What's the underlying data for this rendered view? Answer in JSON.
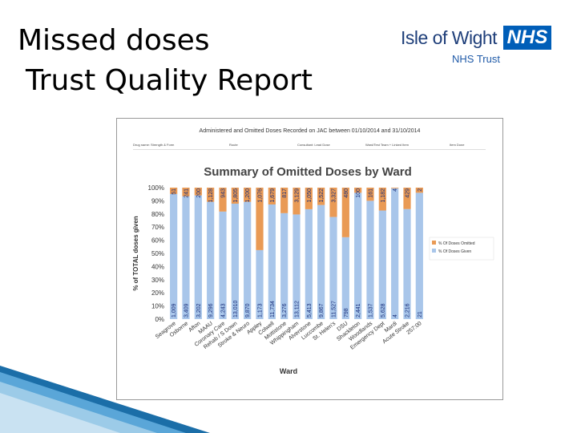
{
  "slide": {
    "title_line1": "Missed doses",
    "title_line2": "Trust Quality Report"
  },
  "logo": {
    "org": "Isle of Wight",
    "mark": "NHS",
    "subtitle": "NHS Trust"
  },
  "report": {
    "header": "Administered and Omitted Doses Recorded on JAC between 01/10/2014 and 31/10/2014",
    "params": [
      "Drug name: Strength & Form",
      "Route",
      "Consultant: Lead Dose",
      "Ward/Test Team + Linked Item",
      "Item Done"
    ]
  },
  "colors": {
    "given": "#a9c6ea",
    "omitted": "#e99a55",
    "navy": "#005eb8"
  },
  "chart_data": {
    "type": "bar",
    "stacked": true,
    "orientation": "vertical",
    "title": "Summary of Omitted Doses by Ward",
    "xlabel": "Ward",
    "ylabel": "% of TOTAL doses given",
    "ylim": [
      0,
      100
    ],
    "yticks": [
      "0%",
      "10%",
      "20%",
      "30%",
      "40%",
      "50%",
      "60%",
      "70%",
      "80%",
      "90%",
      "100%"
    ],
    "grid": false,
    "legend_position": "right",
    "categories": [
      "Seagrove",
      "Osborne",
      "Afton",
      "MAAU",
      "Coronary Care",
      "Rehab / S Down",
      "Stroke & Neuro",
      "Appley",
      "Colwell",
      "Mottistone",
      "Whippingham",
      "Alverstone",
      "Luccombe",
      "St. Helen's",
      "DSU",
      "Shackleton",
      "Woodlands",
      "Emergency Dept",
      "Mardi",
      "Acute Stroke",
      "257:00"
    ],
    "series": [
      {
        "name": "% Of Doses Omitted",
        "color": "#e99a55",
        "values": [
          4.8,
          6.6,
          5.9,
          10.8,
          18.2,
          12.2,
          10.8,
          47.5,
          12.8,
          19.4,
          20.4,
          16.4,
          13.2,
          22.3,
          37.7,
          3.9,
          10.0,
          17.4,
          0.5,
          16.3,
          3.9
        ],
        "labels": [
          "51",
          "241",
          "200",
          "1,128",
          "943",
          "1,805",
          "1,200",
          "1,076",
          "1,679",
          "817",
          "3,129",
          "1,050",
          "1,522",
          "3,327",
          "480",
          "100",
          "161",
          "1,182",
          "4",
          "429",
          "2"
        ]
      },
      {
        "name": "% Of Doses Given",
        "color": "#a9c6ea",
        "values": [
          95.2,
          93.4,
          94.1,
          89.2,
          81.8,
          87.8,
          89.2,
          52.5,
          87.2,
          80.6,
          79.6,
          83.6,
          86.8,
          77.7,
          62.3,
          96.1,
          90.0,
          82.6,
          99.5,
          83.7,
          96.1
        ],
        "labels": [
          "1,009",
          "3,409",
          "3,202",
          "9,296",
          "4,243",
          "13,010",
          "9,870",
          "1,173",
          "11,734",
          "3,276",
          "13,112",
          "5,413",
          "9,867",
          "11,527",
          "798",
          "2,441",
          "1,537",
          "5,628",
          "4",
          "2,216",
          "21"
        ]
      }
    ]
  }
}
